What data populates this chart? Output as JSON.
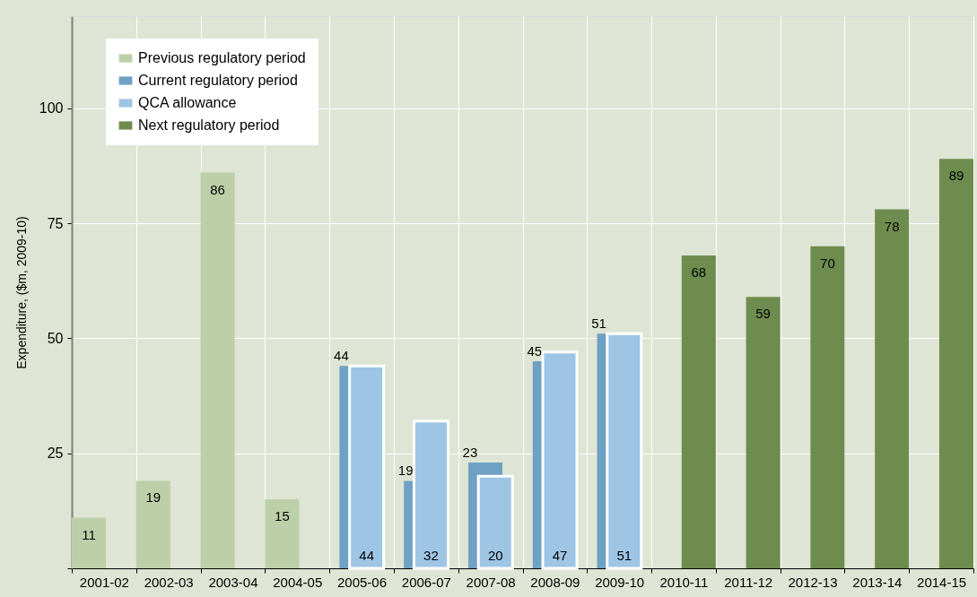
{
  "chart_data": {
    "type": "bar",
    "ylabel": "Expenditure, ($m, 2009-10)",
    "categories": [
      "2001-02",
      "2002-03",
      "2003-04",
      "2004-05",
      "2005-06",
      "2006-07",
      "2007-08",
      "2008-09",
      "2009-10",
      "2010-11",
      "2011-12",
      "2012-13",
      "2013-14",
      "2014-15"
    ],
    "series": [
      {
        "name": "Previous regulatory period",
        "color": "#bdcfa8",
        "values": [
          11,
          19,
          86,
          15,
          null,
          null,
          null,
          null,
          null,
          null,
          null,
          null,
          null,
          null
        ]
      },
      {
        "name": "Current regulatory period",
        "color": "#6fa1c5",
        "values": [
          null,
          null,
          null,
          null,
          44,
          19,
          23,
          45,
          51,
          null,
          null,
          null,
          null,
          null
        ]
      },
      {
        "name": "QCA allowance",
        "color": "#9fc5e5",
        "values": [
          null,
          null,
          null,
          null,
          44,
          32,
          20,
          47,
          51,
          null,
          null,
          null,
          null,
          null
        ]
      },
      {
        "name": "Next regulatory period",
        "color": "#6e8c4e",
        "values": [
          null,
          null,
          null,
          null,
          null,
          null,
          null,
          null,
          null,
          68,
          59,
          70,
          78,
          89
        ]
      }
    ],
    "ylim": [
      0,
      120
    ],
    "yticks": [
      {
        "value": 0,
        "label": null
      },
      25,
      50,
      75,
      100
    ],
    "grid": true,
    "legend": "top left",
    "data_labels": true
  }
}
